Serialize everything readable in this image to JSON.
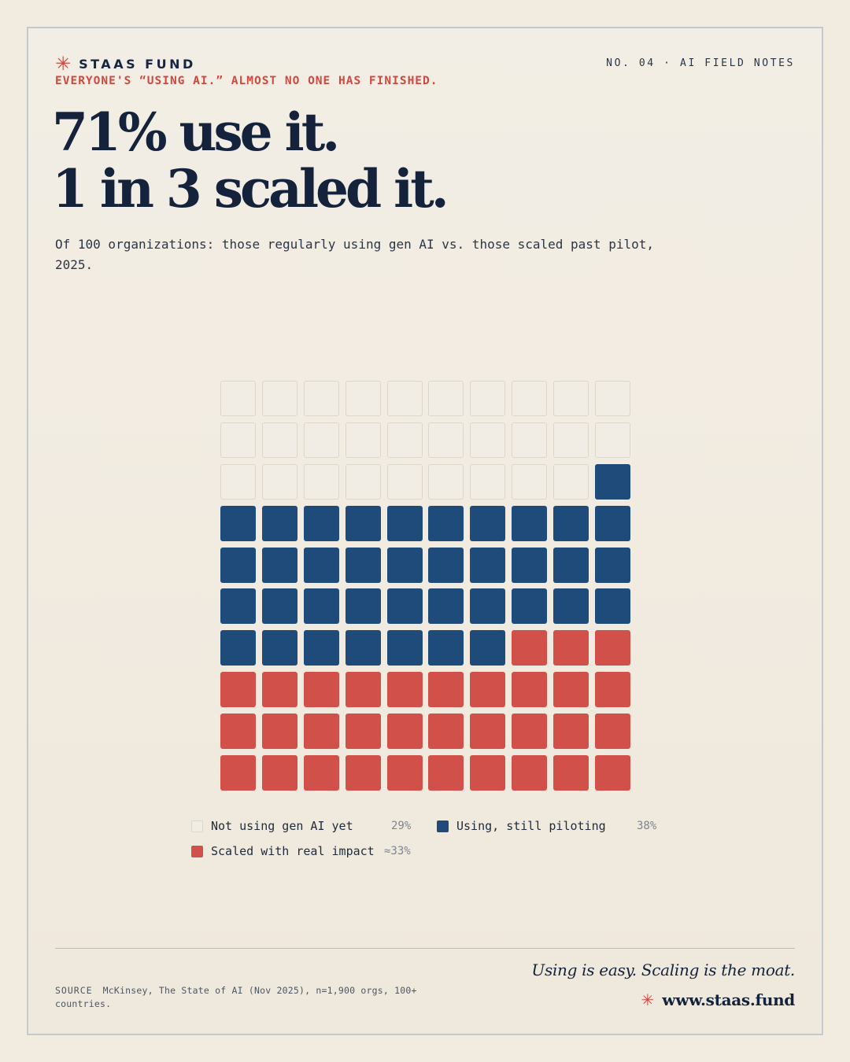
{
  "header": {
    "brand_icon": "asterisk-icon",
    "brand": "STAAS FUND",
    "issue": "NO. 04 · AI FIELD NOTES",
    "kicker": "EVERYONE'S “USING AI.” ALMOST NO ONE HAS FINISHED.",
    "headline_line1": "71% use it.",
    "headline_line2": "1 in 3 scaled it.",
    "subtitle": "Of 100 organizations: those regularly using gen AI vs. those scaled past pilot, 2025."
  },
  "colors": {
    "not_using": "#f2ede4",
    "using": "#1f4b7a",
    "scaled": "#d1514a",
    "accent": "#d0493e",
    "ink": "#14223b"
  },
  "chart_data": {
    "type": "waffle",
    "total": 100,
    "columns": 10,
    "rows": 10,
    "fill_order": "bottom-up",
    "series": [
      {
        "key": "not_using",
        "name": "Not using gen AI yet",
        "count": 29,
        "label": "29%"
      },
      {
        "key": "using",
        "name": "Using, still piloting",
        "count": 38,
        "label": "38%"
      },
      {
        "key": "scaled",
        "name": "Scaled with real impact",
        "count": 33,
        "label": "≈33%"
      }
    ]
  },
  "footer": {
    "source_label": "SOURCE",
    "source_text": "McKinsey, The State of AI (Nov 2025), n=1,900 orgs, 100+ countries.",
    "tagline": "Using is easy. Scaling is the moat.",
    "site_icon": "asterisk-icon",
    "site": "www.staas.fund"
  }
}
